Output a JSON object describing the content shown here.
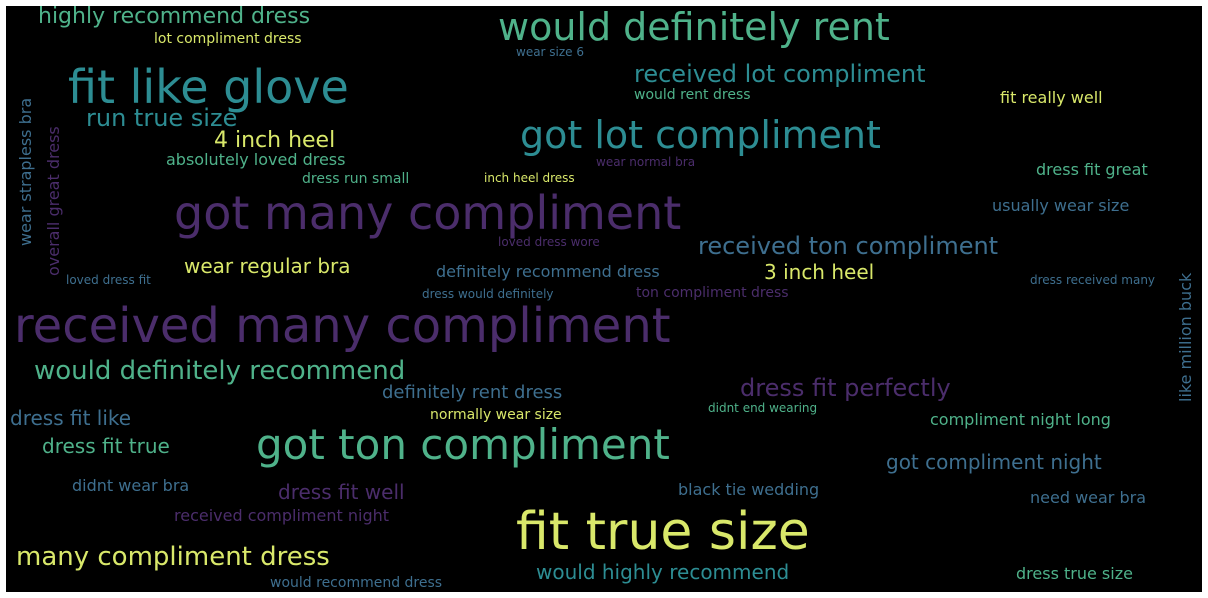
{
  "colors": {
    "background": "#000000",
    "frame": "#ffffff",
    "palette": {
      "yellow": "#d9e86a",
      "green": "#4fb28a",
      "teal": "#2d8d93",
      "blue": "#3e6f8f",
      "purple": "#4b2d6b"
    }
  },
  "words": [
    {
      "text": "received many compliment",
      "color": "purple",
      "size": 48
    },
    {
      "text": "got many compliment",
      "color": "purple",
      "size": 46
    },
    {
      "text": "fit like glove",
      "color": "teal",
      "size": 46
    },
    {
      "text": "would definitely rent",
      "color": "green",
      "size": 38
    },
    {
      "text": "got lot compliment",
      "color": "teal",
      "size": 38
    },
    {
      "text": "got ton compliment",
      "color": "green",
      "size": 42
    },
    {
      "text": "fit true size",
      "color": "yellow",
      "size": 52
    },
    {
      "text": "highly recommend dress",
      "color": "green",
      "size": 22
    },
    {
      "text": "lot compliment dress",
      "color": "yellow",
      "size": 14
    },
    {
      "text": "received lot compliment",
      "color": "teal",
      "size": 24
    },
    {
      "text": "would rent dress",
      "color": "green",
      "size": 14
    },
    {
      "text": "fit really well",
      "color": "yellow",
      "size": 16
    },
    {
      "text": "run true size",
      "color": "teal",
      "size": 24
    },
    {
      "text": "4 inch heel",
      "color": "yellow",
      "size": 22
    },
    {
      "text": "absolutely loved dress",
      "color": "green",
      "size": 16
    },
    {
      "text": "dress run small",
      "color": "green",
      "size": 14
    },
    {
      "text": "inch heel dress",
      "color": "yellow",
      "size": 12
    },
    {
      "text": "dress fit great",
      "color": "green",
      "size": 16
    },
    {
      "text": "usually wear size",
      "color": "blue",
      "size": 16
    },
    {
      "text": "received ton compliment",
      "color": "blue",
      "size": 24
    },
    {
      "text": "wear regular bra",
      "color": "yellow",
      "size": 20
    },
    {
      "text": "3 inch heel",
      "color": "yellow",
      "size": 20
    },
    {
      "text": "definitely recommend dress",
      "color": "blue",
      "size": 16
    },
    {
      "text": "ton compliment dress",
      "color": "purple",
      "size": 14
    },
    {
      "text": "dress would definitely",
      "color": "blue",
      "size": 12
    },
    {
      "text": "dress received many",
      "color": "blue",
      "size": 12
    },
    {
      "text": "would definitely recommend",
      "color": "green",
      "size": 26
    },
    {
      "text": "definitely rent dress",
      "color": "blue",
      "size": 18
    },
    {
      "text": "dress fit perfectly",
      "color": "purple",
      "size": 24
    },
    {
      "text": "dress fit like",
      "color": "blue",
      "size": 20
    },
    {
      "text": "dress fit true",
      "color": "green",
      "size": 20
    },
    {
      "text": "normally wear size",
      "color": "yellow",
      "size": 14
    },
    {
      "text": "didnt end wearing",
      "color": "green",
      "size": 12
    },
    {
      "text": "compliment night long",
      "color": "green",
      "size": 16
    },
    {
      "text": "got compliment night",
      "color": "blue",
      "size": 20
    },
    {
      "text": "dress fit well",
      "color": "purple",
      "size": 20
    },
    {
      "text": "didnt wear bra",
      "color": "blue",
      "size": 16
    },
    {
      "text": "black tie wedding",
      "color": "blue",
      "size": 16
    },
    {
      "text": "need wear bra",
      "color": "blue",
      "size": 16
    },
    {
      "text": "received compliment night",
      "color": "purple",
      "size": 16
    },
    {
      "text": "many compliment dress",
      "color": "yellow",
      "size": 26
    },
    {
      "text": "would highly recommend",
      "color": "teal",
      "size": 20
    },
    {
      "text": "would recommend dress",
      "color": "blue",
      "size": 14
    },
    {
      "text": "dress true size",
      "color": "green",
      "size": 16
    },
    {
      "text": "wear size 6",
      "color": "blue",
      "size": 12
    },
    {
      "text": "wear normal bra",
      "color": "purple",
      "size": 12
    },
    {
      "text": "loved dress wore",
      "color": "purple",
      "size": 12
    },
    {
      "text": "loved dress fit",
      "color": "blue",
      "size": 12
    },
    {
      "text": "overall great dress",
      "color": "purple",
      "size": 16,
      "vertical": true
    },
    {
      "text": "wear strapless bra",
      "color": "blue",
      "size": 16,
      "vertical": true
    },
    {
      "text": "like million buck",
      "color": "blue",
      "size": 16,
      "vertical": true
    }
  ]
}
